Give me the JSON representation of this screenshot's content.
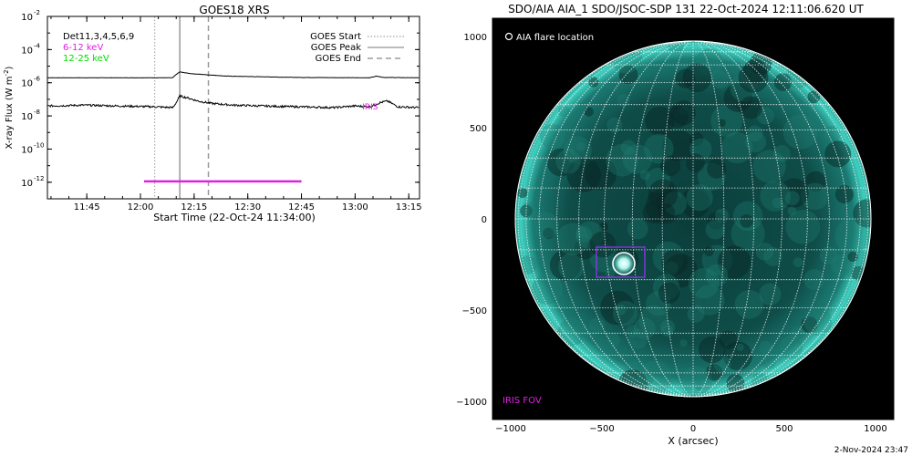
{
  "colors": {
    "magenta": "#e020e0",
    "green": "#00dd00",
    "sun_body": "#0c4a46",
    "sun_limb": "#3fd0c0",
    "flare_circle": "#ffffff",
    "iris_fov": "#a030ff"
  },
  "chart_data": [
    {
      "type": "line",
      "title": "GOES18 XRS",
      "xlabel": "Start Time (22-Oct-24 11:34:00)",
      "ylabel": "X-ray Flux (W m",
      "ylabel_sup": "-2",
      "ylabel_close": ")",
      "x_unit": "minutes since 11:34:00 UT",
      "xlim": [
        0,
        104
      ],
      "ylim_exponent": [
        -13,
        -2
      ],
      "y_scale": "log",
      "x_ticks": [
        {
          "x": 11,
          "label": "11:45"
        },
        {
          "x": 26,
          "label": "12:00"
        },
        {
          "x": 41,
          "label": "12:15"
        },
        {
          "x": 56,
          "label": "12:30"
        },
        {
          "x": 71,
          "label": "12:45"
        },
        {
          "x": 86,
          "label": "13:00"
        },
        {
          "x": 101,
          "label": "13:15"
        }
      ],
      "y_ticks": [
        {
          "exp": -2,
          "base": "10",
          "sup": "-2"
        },
        {
          "exp": -4,
          "base": "10",
          "sup": "-4"
        },
        {
          "exp": -6,
          "base": "10",
          "sup": "-6"
        },
        {
          "exp": -8,
          "base": "10",
          "sup": "-8"
        },
        {
          "exp": -10,
          "base": "10",
          "sup": "-10"
        },
        {
          "exp": -12,
          "base": "10",
          "sup": "-12"
        }
      ],
      "legend_left": {
        "det": "Det11,3,4,5,6,9",
        "low": "6-12 keV",
        "high": "12-25 keV"
      },
      "legend_right": {
        "start": "GOES Start",
        "peak": "GOES Peak",
        "end": "GOES End"
      },
      "goes_start_x": 30,
      "goes_peak_x": 37,
      "goes_end_x": 45,
      "long_channel": {
        "x": [
          0,
          35,
          36,
          37,
          40,
          50,
          70,
          90,
          92,
          94,
          104
        ],
        "log_flux": [
          -5.7,
          -5.7,
          -5.5,
          -5.35,
          -5.45,
          -5.6,
          -5.68,
          -5.7,
          -5.6,
          -5.68,
          -5.7
        ]
      },
      "short_channel": {
        "x": [
          0,
          10,
          20,
          30,
          35,
          36,
          37,
          39,
          42,
          46,
          52,
          60,
          70,
          80,
          86,
          90,
          93,
          95,
          98,
          104
        ],
        "log_flux": [
          -7.4,
          -7.35,
          -7.4,
          -7.45,
          -7.5,
          -7.2,
          -6.8,
          -6.9,
          -7.1,
          -7.25,
          -7.35,
          -7.4,
          -7.45,
          -7.5,
          -7.4,
          -7.45,
          -7.2,
          -7.1,
          -7.45,
          -7.5
        ]
      },
      "rhessi_bar": {
        "x_start": 27,
        "x_end": 71,
        "log_flux": -11.95
      },
      "marker": {
        "x": 88,
        "log_flux": -7.45,
        "label": "IRIS"
      }
    },
    {
      "type": "scatter",
      "title": "SDO/AIA AIA_1 SDO/JSOC-SDP 131 22-Oct-2024 12:11:06.620 UT",
      "xlabel": "X (arcsec)",
      "ylabel": "",
      "xlim": [
        -1100,
        1100
      ],
      "ylim": [
        -1100,
        1100
      ],
      "x_ticks": [
        {
          "v": -1000,
          "label": "−1000"
        },
        {
          "v": -500,
          "label": "−500"
        },
        {
          "v": 0,
          "label": "0"
        },
        {
          "v": 500,
          "label": "500"
        },
        {
          "v": 1000,
          "label": "1000"
        }
      ],
      "y_ticks": [
        {
          "v": 1000,
          "label": "1000"
        },
        {
          "v": 500,
          "label": "500"
        },
        {
          "v": 0,
          "label": "0"
        },
        {
          "v": -500,
          "label": "−500"
        },
        {
          "v": -1000,
          "label": "−1000"
        }
      ],
      "solar_radius": 975,
      "grid_step_deg": 10,
      "flare_location": {
        "x": -380,
        "y": -245,
        "r": 60
      },
      "iris_fov": {
        "x0": -530,
        "x1": -265,
        "y0": -320,
        "y1": -155
      },
      "legend_flare": "AIA flare location",
      "legend_iris": "IRIS FOV",
      "footer": "2-Nov-2024 23:47"
    }
  ]
}
